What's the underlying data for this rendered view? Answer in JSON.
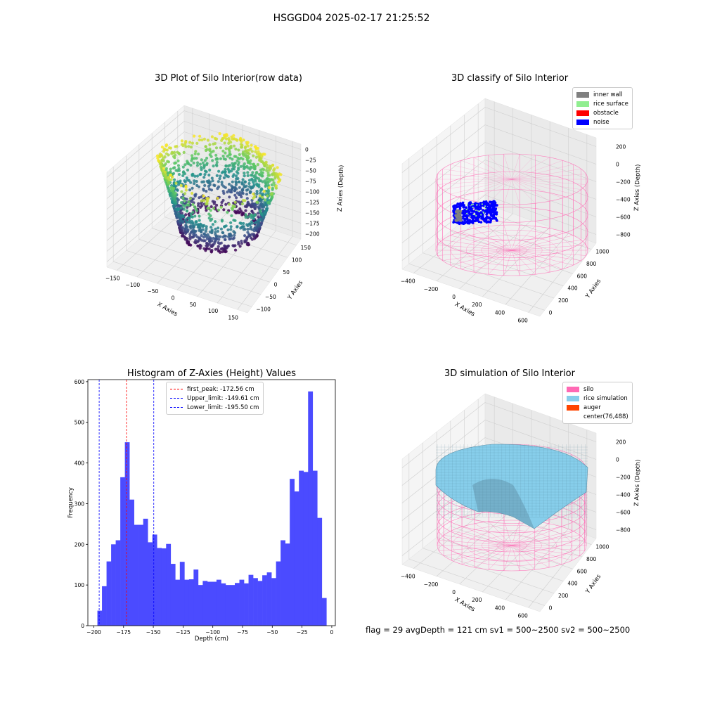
{
  "suptitle": "HSGGD04 2025-02-17 21:25:52",
  "footer": "flag = 29  avgDepth = 121 cm  sv1 = 500~2500  sv2 = 500~2500",
  "colors": {
    "hist_bar": "#4b4bff",
    "silo_wire": "#ff69b4",
    "inner_wall": "#808080",
    "rice_surface": "#90ee90",
    "obstacle": "#ff0000",
    "noise": "#0000ff",
    "rice_sim": "#87ceeb",
    "auger": "#ff4500"
  },
  "chart_data": [
    {
      "type": "scatter",
      "title": "3D Plot of Silo Interior(row data)",
      "xlabel": "X Axies",
      "ylabel": "Y Axies",
      "zlabel": "Z Axies (Depth)",
      "x_ticks": [
        "−150",
        "−100",
        "−50",
        "0",
        "50",
        "100",
        "150"
      ],
      "y_ticks": [
        "−100",
        "−50",
        "0",
        "50",
        "100",
        "150"
      ],
      "z_ticks": [
        "0",
        "−25",
        "−50",
        "−75",
        "−100",
        "−125",
        "−150",
        "−175",
        "−200"
      ],
      "xlim": [
        -180,
        180
      ],
      "ylim": [
        -110,
        160
      ],
      "zlim": [
        -210,
        5
      ],
      "colormap": "viridis"
    },
    {
      "type": "scatter",
      "title": "3D classify of Silo Interior",
      "xlabel": "X Axies",
      "ylabel": "Y Axies",
      "zlabel": "Z Axies (Depth)",
      "x_ticks": [
        "−400",
        "−200",
        "0",
        "200",
        "400",
        "600"
      ],
      "y_ticks": [
        "0",
        "200",
        "400",
        "600",
        "800",
        "1000"
      ],
      "z_ticks": [
        "200",
        "0",
        "−200",
        "−400",
        "−600",
        "−800"
      ],
      "legend": [
        {
          "label": "inner wall",
          "color": "#808080"
        },
        {
          "label": "rice surface",
          "color": "#90ee90"
        },
        {
          "label": "obstacle",
          "color": "#ff0000"
        },
        {
          "label": "noise",
          "color": "#0000ff"
        }
      ]
    },
    {
      "type": "bar",
      "title": "Histogram of Z-Axies (Height) Values",
      "xlabel": "Depth (cm)",
      "ylabel": "Frequency",
      "xlim": [
        -205,
        3
      ],
      "ylim": [
        0,
        605
      ],
      "x_ticks": [
        -200,
        -175,
        -150,
        -125,
        -100,
        -75,
        -50,
        -25,
        0
      ],
      "y_ticks": [
        0,
        100,
        200,
        300,
        400,
        500,
        600
      ],
      "bin_start": -197.0,
      "bin_width": 3.85,
      "values": [
        37,
        97,
        158,
        200,
        210,
        365,
        451,
        310,
        248,
        248,
        263,
        205,
        224,
        191,
        190,
        201,
        152,
        113,
        157,
        113,
        114,
        138,
        100,
        110,
        108,
        108,
        113,
        104,
        100,
        100,
        105,
        113,
        104,
        125,
        117,
        110,
        124,
        131,
        117,
        158,
        210,
        202,
        361,
        330,
        381,
        378,
        576,
        381,
        265,
        68
      ],
      "vlines": [
        {
          "label": "first_peak: -172.56 cm",
          "x": -172.56,
          "color": "#ff0000"
        },
        {
          "label": "Upper_limit: -149.61 cm",
          "x": -149.61,
          "color": "#0000ff"
        },
        {
          "label": "Lower_limit: -195.50 cm",
          "x": -195.5,
          "color": "#0000ff"
        }
      ]
    },
    {
      "type": "area",
      "title": "3D simulation of Silo Interior",
      "xlabel": "X Axies",
      "ylabel": "Y Axies",
      "zlabel": "Z Axies (Depth)",
      "x_ticks": [
        "−400",
        "−200",
        "0",
        "200",
        "400",
        "600"
      ],
      "y_ticks": [
        "0",
        "200",
        "400",
        "600",
        "800",
        "1000"
      ],
      "z_ticks": [
        "200",
        "0",
        "−200",
        "−400",
        "−600",
        "−800"
      ],
      "legend": [
        {
          "label": "silo",
          "color": "#ff69b4"
        },
        {
          "label": "rice simulation",
          "color": "#87ceeb"
        },
        {
          "label": "auger",
          "color": "#ff4500"
        },
        {
          "label": "center(76,488)",
          "color": ""
        }
      ]
    }
  ]
}
